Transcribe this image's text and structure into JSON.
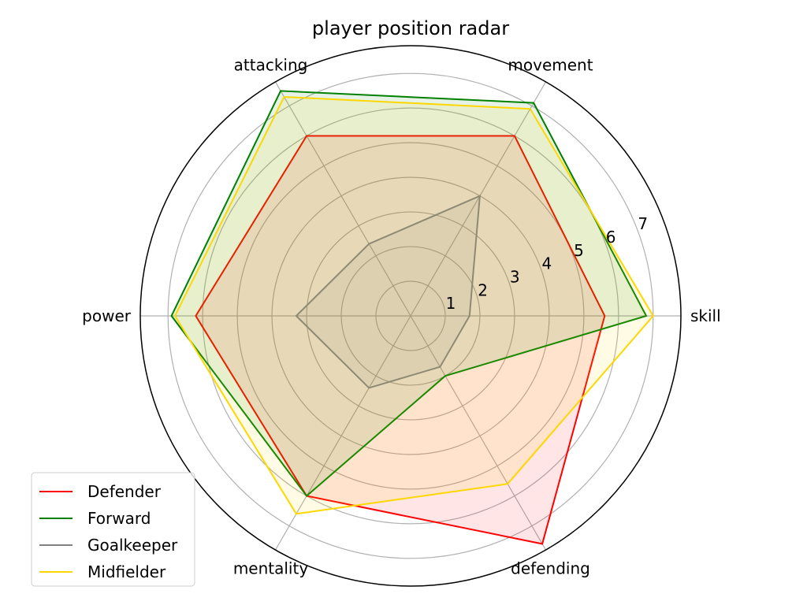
{
  "chart_data": {
    "type": "radar",
    "title": "player position radar",
    "categories": [
      "skill",
      "movement",
      "attacking",
      "power",
      "mentality",
      "defending"
    ],
    "radial_ticks": [
      1,
      2,
      3,
      4,
      5,
      6,
      7
    ],
    "rlim": [
      0,
      7.8
    ],
    "grid": true,
    "legend_position": "lower-left",
    "series": [
      {
        "name": "Defender",
        "color": "#ff0000",
        "values": [
          5.6,
          6.0,
          6.0,
          6.2,
          6.0,
          7.6
        ]
      },
      {
        "name": "Forward",
        "color": "#008000",
        "values": [
          6.8,
          7.1,
          7.5,
          6.9,
          6.0,
          2.0
        ]
      },
      {
        "name": "Goalkeeper",
        "color": "#808080",
        "values": [
          1.7,
          4.0,
          2.4,
          3.3,
          2.4,
          1.7
        ]
      },
      {
        "name": "Midfielder",
        "color": "#ffd700",
        "values": [
          7.0,
          6.9,
          7.3,
          6.8,
          6.6,
          5.6
        ]
      }
    ]
  }
}
